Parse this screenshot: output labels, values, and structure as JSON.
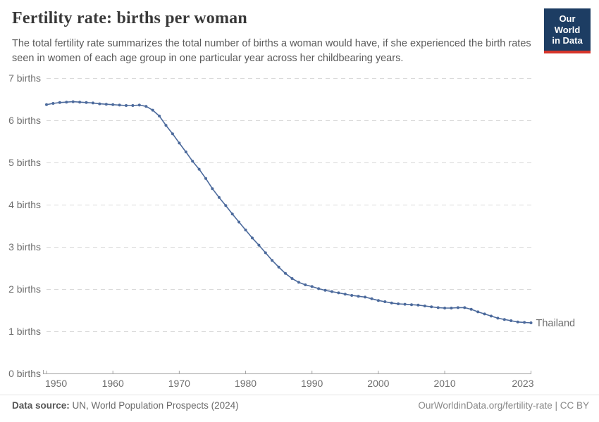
{
  "header": {
    "title": "Fertility rate: births per woman",
    "subtitle": "The total fertility rate summarizes the total number of births a woman would have, if she experienced the birth rates seen in women of each age group in one particular year across her childbearing years.",
    "logo": {
      "line1": "Our World",
      "line2": "in Data"
    }
  },
  "chart_data": {
    "type": "line",
    "title": "Fertility rate: births per woman",
    "xlabel": "",
    "ylabel": "births",
    "xlim": [
      1950,
      2023
    ],
    "ylim": [
      0,
      7
    ],
    "grid": "horizontal-dashed",
    "legend_position": "end-of-line",
    "x_ticks": [
      1950,
      1960,
      1970,
      1980,
      1990,
      2000,
      2010,
      2023
    ],
    "x_tick_labels": [
      "1950",
      "1960",
      "1970",
      "1980",
      "1990",
      "2000",
      "2010",
      "2023"
    ],
    "y_ticks": [
      0,
      1,
      2,
      3,
      4,
      5,
      6,
      7
    ],
    "y_tick_labels": [
      "0 births",
      "1 births",
      "2 births",
      "3 births",
      "4 births",
      "5 births",
      "6 births",
      "7 births"
    ],
    "series": [
      {
        "name": "Thailand",
        "color": "#4c6a9c",
        "x": [
          1950,
          1951,
          1952,
          1953,
          1954,
          1955,
          1956,
          1957,
          1958,
          1959,
          1960,
          1961,
          1962,
          1963,
          1964,
          1965,
          1966,
          1967,
          1968,
          1969,
          1970,
          1971,
          1972,
          1973,
          1974,
          1975,
          1976,
          1977,
          1978,
          1979,
          1980,
          1981,
          1982,
          1983,
          1984,
          1985,
          1986,
          1987,
          1988,
          1989,
          1990,
          1991,
          1992,
          1993,
          1994,
          1995,
          1996,
          1997,
          1998,
          1999,
          2000,
          2001,
          2002,
          2003,
          2004,
          2005,
          2006,
          2007,
          2008,
          2009,
          2010,
          2011,
          2012,
          2013,
          2014,
          2015,
          2016,
          2017,
          2018,
          2019,
          2020,
          2021,
          2022,
          2023
        ],
        "values": [
          6.37,
          6.4,
          6.42,
          6.43,
          6.44,
          6.43,
          6.42,
          6.41,
          6.39,
          6.38,
          6.37,
          6.36,
          6.35,
          6.35,
          6.36,
          6.33,
          6.24,
          6.1,
          5.88,
          5.68,
          5.46,
          5.25,
          5.03,
          4.84,
          4.62,
          4.38,
          4.17,
          3.98,
          3.78,
          3.59,
          3.4,
          3.21,
          3.04,
          2.86,
          2.68,
          2.52,
          2.37,
          2.25,
          2.16,
          2.1,
          2.06,
          2.01,
          1.97,
          1.94,
          1.91,
          1.88,
          1.85,
          1.83,
          1.81,
          1.77,
          1.73,
          1.7,
          1.67,
          1.65,
          1.64,
          1.63,
          1.62,
          1.6,
          1.58,
          1.56,
          1.55,
          1.55,
          1.56,
          1.56,
          1.52,
          1.46,
          1.41,
          1.36,
          1.31,
          1.28,
          1.25,
          1.22,
          1.21,
          1.2
        ]
      }
    ]
  },
  "footer": {
    "source_label": "Data source:",
    "source_text": " UN, World Population Prospects (2024)",
    "link_text": "OurWorldinData.org/fertility-rate | CC BY"
  },
  "colors": {
    "line": "#4c6a9c",
    "grid": "#d9d9d9",
    "axis": "#a3a3a3",
    "tick_text": "#6e6e6e",
    "logo_navy": "#1d3d63",
    "logo_red": "#d6352b"
  }
}
